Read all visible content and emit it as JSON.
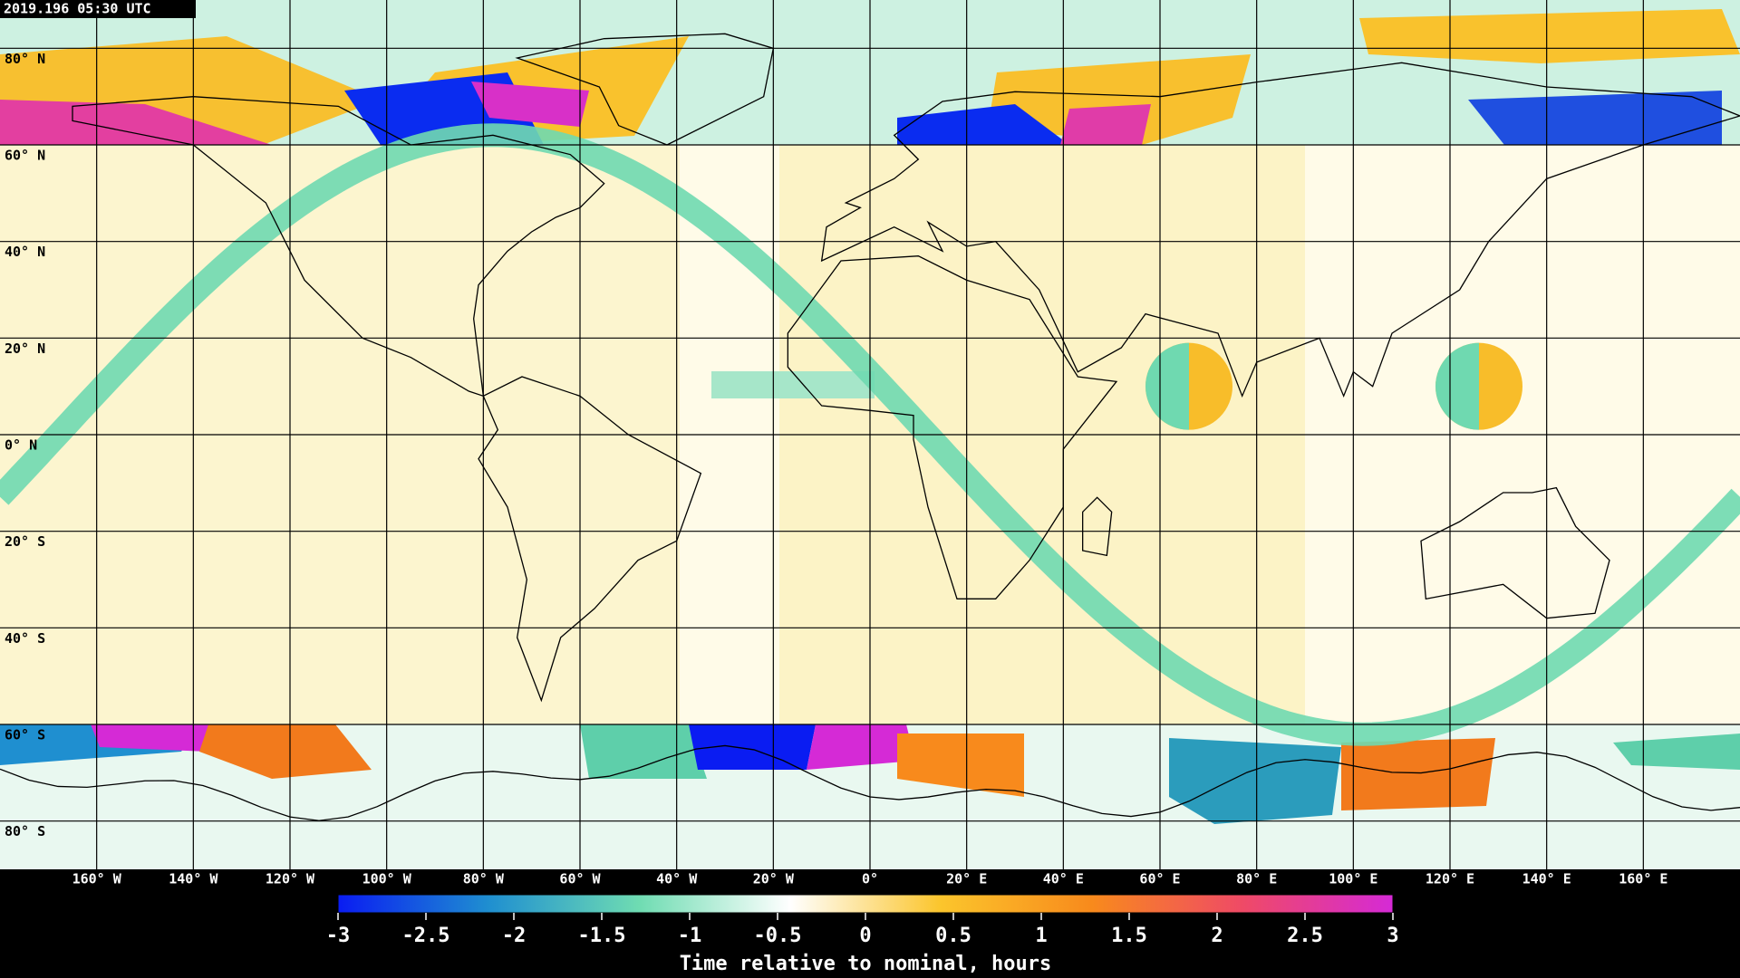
{
  "timestamp": "2019.196 05:30 UTC",
  "lat_ticks": [
    {
      "value": 80,
      "label": "80° N"
    },
    {
      "value": 60,
      "label": "60° N"
    },
    {
      "value": 40,
      "label": "40° N"
    },
    {
      "value": 20,
      "label": "20° N"
    },
    {
      "value": 0,
      "label": "0° N"
    },
    {
      "value": -20,
      "label": "20° S"
    },
    {
      "value": -40,
      "label": "40° S"
    },
    {
      "value": -60,
      "label": "60° S"
    },
    {
      "value": -80,
      "label": "80° S"
    }
  ],
  "lon_ticks": [
    {
      "value": -160,
      "label": "160° W"
    },
    {
      "value": -140,
      "label": "140° W"
    },
    {
      "value": -120,
      "label": "120° W"
    },
    {
      "value": -100,
      "label": "100° W"
    },
    {
      "value": -80,
      "label": "80° W"
    },
    {
      "value": -60,
      "label": "60° W"
    },
    {
      "value": -40,
      "label": "40° W"
    },
    {
      "value": -20,
      "label": "20° W"
    },
    {
      "value": 0,
      "label": "0°"
    },
    {
      "value": 20,
      "label": "20° E"
    },
    {
      "value": 40,
      "label": "40° E"
    },
    {
      "value": 60,
      "label": "60° E"
    },
    {
      "value": 80,
      "label": "80° E"
    },
    {
      "value": 100,
      "label": "100° E"
    },
    {
      "value": 120,
      "label": "120° E"
    },
    {
      "value": 140,
      "label": "140° E"
    },
    {
      "value": 160,
      "label": "160° E"
    }
  ],
  "colorbar": {
    "label": "Time relative to nominal, hours",
    "range": [
      -3,
      3
    ],
    "ticks": [
      -3,
      -2.5,
      -2,
      -1.5,
      -1,
      -0.5,
      0,
      0.5,
      1,
      1.5,
      2,
      2.5,
      3
    ],
    "colors": [
      "#0a1cf2",
      "#1f8fd0",
      "#6fdcb2",
      "#ffffff",
      "#fbc52c",
      "#f88a1c",
      "#ef4a66",
      "#d52ad6"
    ]
  }
}
